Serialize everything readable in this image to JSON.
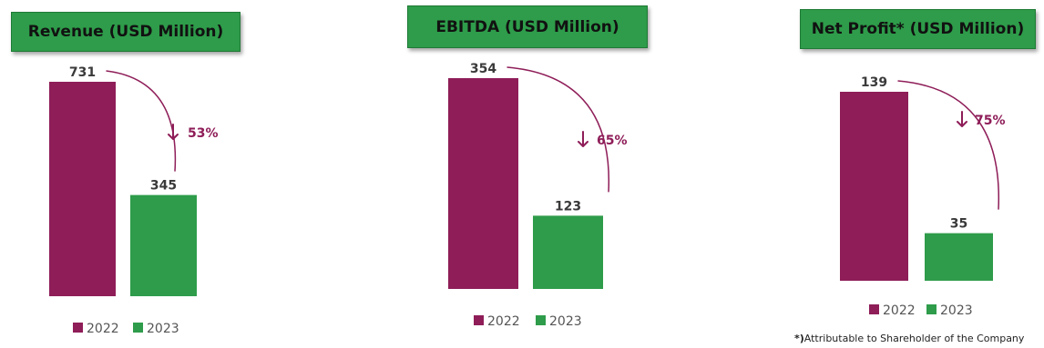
{
  "colors": {
    "y2022": "#8e1d58",
    "y2023": "#2e9c4a",
    "title_bg": "#2e9c4a",
    "arrow": "#8e1d58"
  },
  "legend": [
    "2022",
    "2023"
  ],
  "footnote": {
    "star": "*)",
    "text": "Attributable to Shareholder of the Company"
  },
  "chart_data": [
    {
      "type": "bar",
      "title": "Revenue (USD Million)",
      "categories": [
        "2022",
        "2023"
      ],
      "values": [
        731,
        345
      ],
      "labels": [
        "731",
        "345"
      ],
      "change": "53%",
      "change_direction": "down"
    },
    {
      "type": "bar",
      "title": "EBITDA (USD Million)",
      "categories": [
        "2022",
        "2023"
      ],
      "values": [
        354,
        123
      ],
      "labels": [
        "354",
        "123"
      ],
      "change": "65%",
      "change_direction": "down"
    },
    {
      "type": "bar",
      "title": "Net Profit* (USD Million)",
      "categories": [
        "2022",
        "2023"
      ],
      "values": [
        139,
        35
      ],
      "labels": [
        "139",
        "35"
      ],
      "change": "75%",
      "change_direction": "down"
    }
  ]
}
